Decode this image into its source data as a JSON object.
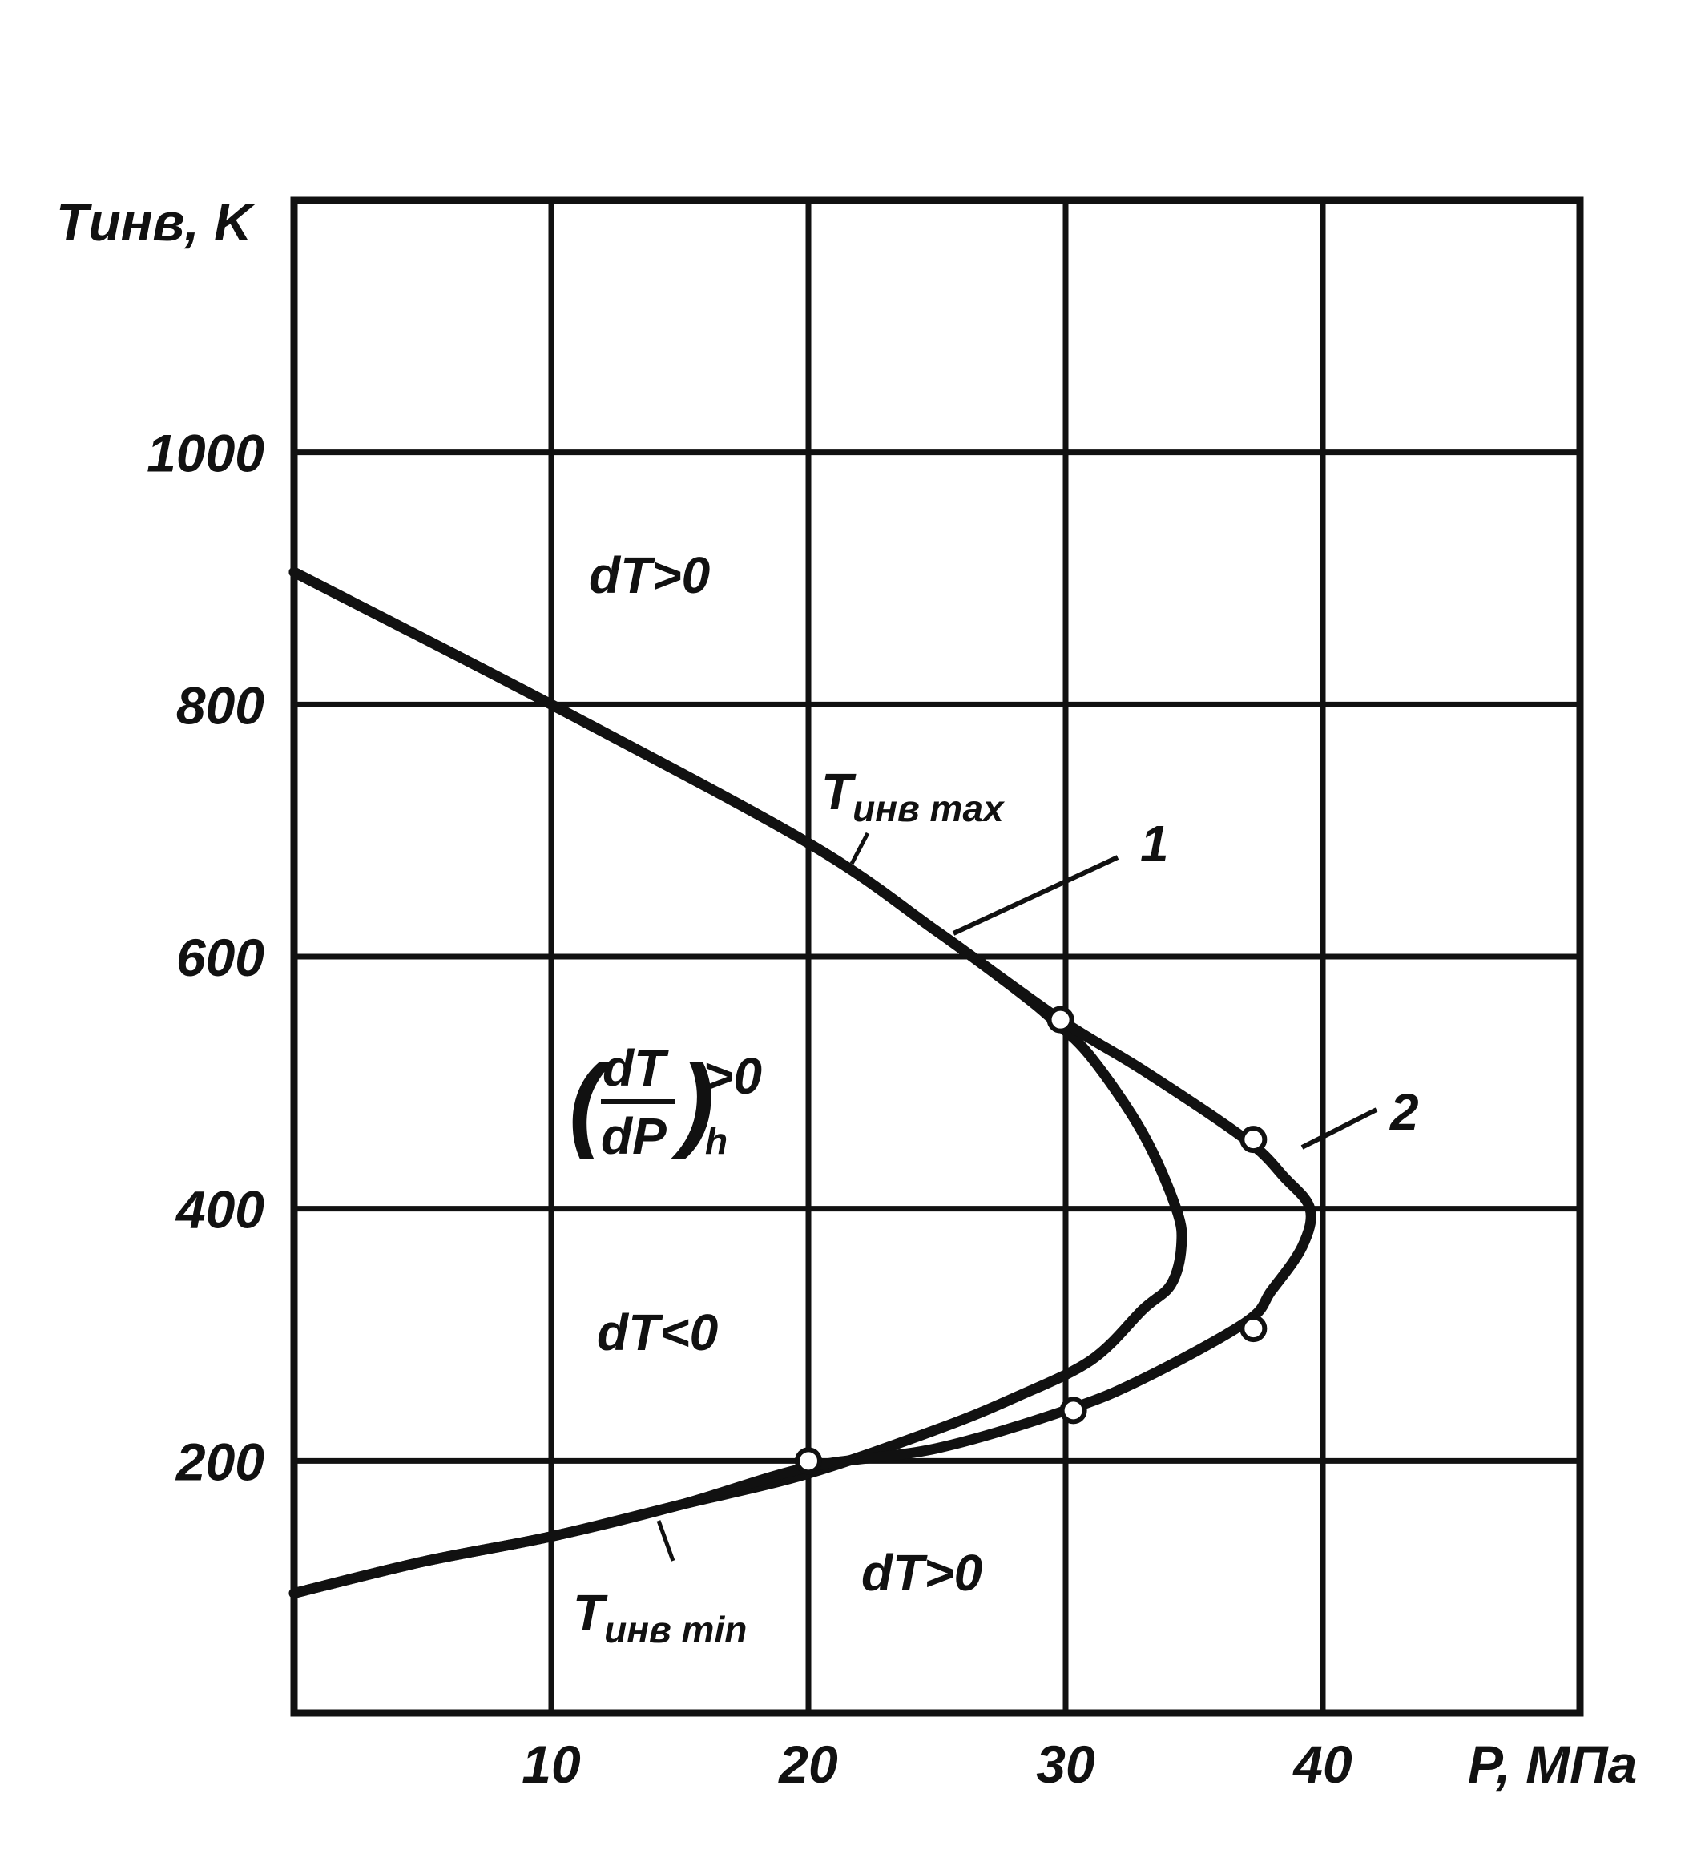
{
  "chart_data": {
    "type": "line",
    "title": "",
    "xlabel": "P, МПа",
    "ylabel": "Tинв, K",
    "xlim": [
      0,
      50
    ],
    "ylim": [
      0,
      1200
    ],
    "x_ticks": [
      10,
      20,
      30,
      40
    ],
    "x_tick_labels": [
      "10",
      "20",
      "30",
      "40"
    ],
    "y_ticks": [
      200,
      400,
      600,
      800,
      1000
    ],
    "y_tick_labels": [
      "200",
      "400",
      "600",
      "800",
      "1000"
    ],
    "grid": true,
    "series": [
      {
        "name": "1",
        "x": [
          0,
          10,
          20,
          25,
          28,
          29.5,
          31,
          33,
          34.3,
          34.5,
          34.1,
          33,
          31,
          28,
          25,
          20,
          15,
          10,
          5,
          0
        ],
        "y": [
          905,
          800,
          690,
          620,
          575,
          550,
          520,
          460,
          400,
          370,
          340,
          320,
          280,
          250,
          225,
          190,
          165,
          140,
          120,
          95
        ]
      },
      {
        "name": "2",
        "x": [
          0,
          10,
          20,
          25,
          29.8,
          33,
          37,
          38.5,
          39.5,
          39.2,
          38,
          37,
          33,
          30,
          25,
          20,
          15,
          10,
          5,
          0
        ],
        "y": [
          905,
          800,
          690,
          620,
          550,
          510,
          455,
          425,
          400,
          370,
          335,
          310,
          265,
          240,
          210,
          195,
          165,
          140,
          120,
          95
        ]
      }
    ],
    "markers": [
      {
        "x": 29.8,
        "y": 550
      },
      {
        "x": 37.3,
        "y": 455
      },
      {
        "x": 37.3,
        "y": 305
      },
      {
        "x": 30.3,
        "y": 240
      },
      {
        "x": 20,
        "y": 200
      }
    ],
    "annotations": {
      "tmax_label": {
        "main": "T",
        "sub": "инв max"
      },
      "tmin_label": {
        "main": "T",
        "sub": "инв min"
      },
      "curve1_label": "1",
      "curve2_label": "2",
      "region_top": "dT>0",
      "region_middle": "dT<0",
      "region_bottom": "dT>0",
      "derivative_num": "dT",
      "derivative_den": "dP",
      "derivative_rel": ">0",
      "derivative_sub": "h"
    }
  }
}
